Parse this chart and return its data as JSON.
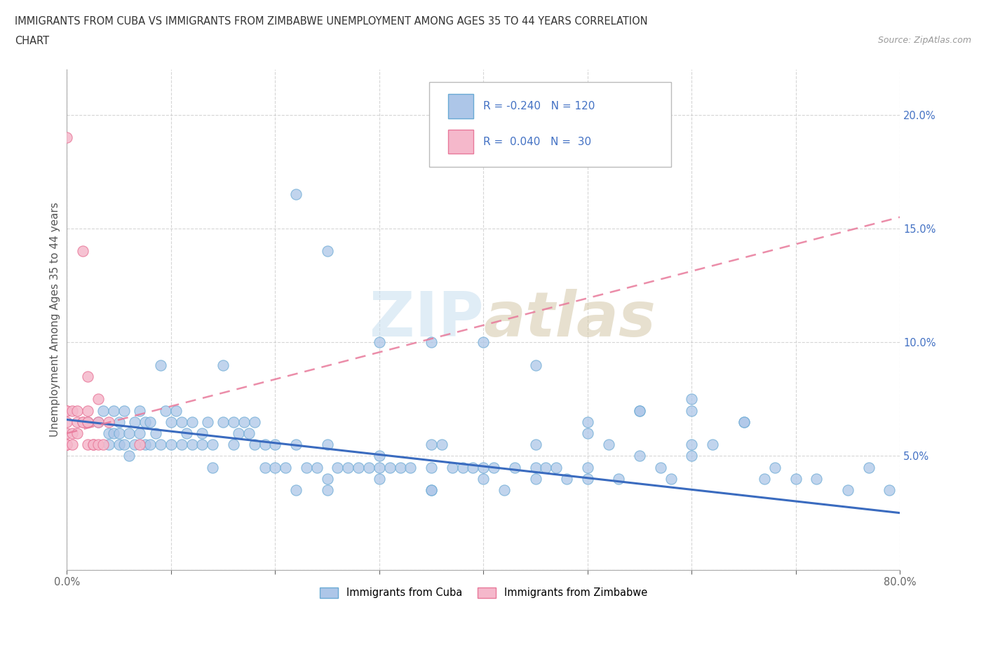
{
  "title_line1": "IMMIGRANTS FROM CUBA VS IMMIGRANTS FROM ZIMBABWE UNEMPLOYMENT AMONG AGES 35 TO 44 YEARS CORRELATION",
  "title_line2": "CHART",
  "source_text": "Source: ZipAtlas.com",
  "ylabel": "Unemployment Among Ages 35 to 44 years",
  "xlim": [
    0.0,
    0.8
  ],
  "ylim": [
    0.0,
    0.22
  ],
  "cuba_color": "#adc6e8",
  "cuba_edge_color": "#6aaad4",
  "zimbabwe_color": "#f5b8cb",
  "zimbabwe_edge_color": "#e8799a",
  "trend_cuba_color": "#3a6bbf",
  "trend_zim_color": "#e8799a",
  "background_color": "#ffffff",
  "grid_color": "#cccccc",
  "ytick_color": "#4472c4",
  "cuba_x": [
    0.02,
    0.03,
    0.035,
    0.04,
    0.04,
    0.045,
    0.045,
    0.05,
    0.05,
    0.05,
    0.055,
    0.055,
    0.06,
    0.06,
    0.065,
    0.065,
    0.07,
    0.07,
    0.075,
    0.075,
    0.08,
    0.08,
    0.085,
    0.09,
    0.09,
    0.095,
    0.1,
    0.1,
    0.105,
    0.11,
    0.11,
    0.115,
    0.12,
    0.12,
    0.13,
    0.13,
    0.135,
    0.14,
    0.14,
    0.15,
    0.15,
    0.16,
    0.16,
    0.165,
    0.17,
    0.175,
    0.18,
    0.18,
    0.19,
    0.19,
    0.2,
    0.2,
    0.21,
    0.22,
    0.22,
    0.23,
    0.24,
    0.25,
    0.25,
    0.26,
    0.27,
    0.28,
    0.29,
    0.3,
    0.3,
    0.31,
    0.32,
    0.33,
    0.35,
    0.35,
    0.36,
    0.37,
    0.38,
    0.39,
    0.4,
    0.41,
    0.42,
    0.43,
    0.45,
    0.46,
    0.47,
    0.48,
    0.5,
    0.5,
    0.52,
    0.53,
    0.55,
    0.57,
    0.58,
    0.6,
    0.6,
    0.62,
    0.65,
    0.67,
    0.68,
    0.7,
    0.72,
    0.75,
    0.77,
    0.79,
    0.22,
    0.25,
    0.3,
    0.35,
    0.4,
    0.45,
    0.5,
    0.55,
    0.6,
    0.65,
    0.3,
    0.4,
    0.5,
    0.25,
    0.35,
    0.45,
    0.55,
    0.6,
    0.35,
    0.45
  ],
  "cuba_y": [
    0.065,
    0.065,
    0.07,
    0.06,
    0.055,
    0.06,
    0.07,
    0.065,
    0.055,
    0.06,
    0.07,
    0.055,
    0.06,
    0.05,
    0.065,
    0.055,
    0.06,
    0.07,
    0.055,
    0.065,
    0.055,
    0.065,
    0.06,
    0.09,
    0.055,
    0.07,
    0.065,
    0.055,
    0.07,
    0.065,
    0.055,
    0.06,
    0.065,
    0.055,
    0.06,
    0.055,
    0.065,
    0.055,
    0.045,
    0.09,
    0.065,
    0.055,
    0.065,
    0.06,
    0.065,
    0.06,
    0.055,
    0.065,
    0.045,
    0.055,
    0.045,
    0.055,
    0.045,
    0.055,
    0.035,
    0.045,
    0.045,
    0.055,
    0.035,
    0.045,
    0.045,
    0.045,
    0.045,
    0.05,
    0.045,
    0.045,
    0.045,
    0.045,
    0.045,
    0.035,
    0.055,
    0.045,
    0.045,
    0.045,
    0.045,
    0.045,
    0.035,
    0.045,
    0.045,
    0.045,
    0.045,
    0.04,
    0.045,
    0.04,
    0.055,
    0.04,
    0.05,
    0.045,
    0.04,
    0.075,
    0.05,
    0.055,
    0.065,
    0.04,
    0.045,
    0.04,
    0.04,
    0.035,
    0.045,
    0.035,
    0.165,
    0.14,
    0.1,
    0.1,
    0.1,
    0.09,
    0.065,
    0.07,
    0.055,
    0.065,
    0.04,
    0.04,
    0.06,
    0.04,
    0.035,
    0.04,
    0.07,
    0.07,
    0.055,
    0.055
  ],
  "zimbabwe_x": [
    0.0,
    0.0,
    0.0,
    0.0,
    0.0,
    0.0,
    0.0,
    0.0,
    0.005,
    0.005,
    0.005,
    0.01,
    0.01,
    0.01,
    0.015,
    0.015,
    0.015,
    0.02,
    0.02,
    0.02,
    0.02,
    0.02,
    0.025,
    0.025,
    0.03,
    0.03,
    0.03,
    0.035,
    0.04,
    0.07
  ],
  "zimbabwe_y": [
    0.065,
    0.07,
    0.055,
    0.06,
    0.055,
    0.055,
    0.19,
    0.07,
    0.06,
    0.07,
    0.055,
    0.065,
    0.06,
    0.07,
    0.065,
    0.14,
    0.065,
    0.065,
    0.085,
    0.07,
    0.055,
    0.065,
    0.055,
    0.055,
    0.065,
    0.075,
    0.055,
    0.055,
    0.065,
    0.055
  ],
  "cuba_trend_x0": 0.0,
  "cuba_trend_y0": 0.066,
  "cuba_trend_x1": 0.8,
  "cuba_trend_y1": 0.025,
  "zim_trend_x0": 0.0,
  "zim_trend_y0": 0.06,
  "zim_trend_x1": 0.8,
  "zim_trend_y1": 0.155
}
